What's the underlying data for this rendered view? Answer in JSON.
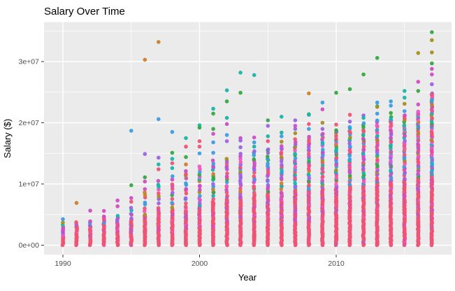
{
  "chart_data": {
    "type": "scatter",
    "title": "Salary Over Time",
    "xlabel": "Year",
    "ylabel": "Salary ($)",
    "x_ticks": [
      {
        "label": "1990",
        "value": 1990
      },
      {
        "label": "2000",
        "value": 2000
      },
      {
        "label": "2010",
        "value": 2010
      }
    ],
    "x_minor_ticks": [
      1995,
      2005,
      2015
    ],
    "y_ticks": [
      {
        "label": "0e+00",
        "value": 0
      },
      {
        "label": "1e+07",
        "value": 10000000
      },
      {
        "label": "2e+07",
        "value": 20000000
      },
      {
        "label": "3e+07",
        "value": 30000000
      }
    ],
    "y_minor_ticks": [
      5000000,
      15000000,
      25000000,
      35000000
    ],
    "xlim": [
      1988.6,
      2018.4
    ],
    "ylim": [
      -1750000,
      36500000
    ],
    "grid": true,
    "legend": "none",
    "panel_color": "#EBEBEB",
    "gridline_color": "#FFFFFF",
    "palette": {
      "rose": "#ef5375",
      "magenta": "#cf4dc4",
      "pink": "#ef59c1",
      "purple": "#9d62e4",
      "blue": "#3c9de2",
      "teal": "#18b5ab",
      "green": "#35a845",
      "olive": "#a58f1e",
      "orange": "#cc802a"
    },
    "solid_color_weights": {
      "rose": 0.78,
      "magenta": 0.12,
      "purple": 0.06,
      "pink": 0.04
    },
    "mixed_color_weights": {
      "rose": 0.24,
      "magenta": 0.19,
      "purple": 0.15,
      "blue": 0.13,
      "teal": 0.1,
      "pink": 0.07,
      "green": 0.06,
      "olive": 0.04,
      "orange": 0.02
    },
    "years": [
      {
        "year": 1990,
        "solid_max": 2400000,
        "mixed_max": 3600000,
        "mixed_n": 3,
        "outliers": [
          [
            4250000,
            "blue"
          ],
          [
            3700000,
            "olive"
          ]
        ]
      },
      {
        "year": 1991,
        "solid_max": 3000000,
        "mixed_max": 3900000,
        "mixed_n": 3,
        "outliers": [
          [
            6900000,
            "orange"
          ]
        ]
      },
      {
        "year": 1992,
        "solid_max": 3200000,
        "mixed_max": 4100000,
        "mixed_n": 3,
        "outliers": [
          [
            5650000,
            "magenta"
          ]
        ]
      },
      {
        "year": 1993,
        "solid_max": 3600000,
        "mixed_max": 4600000,
        "mixed_n": 4,
        "outliers": [
          [
            5600000,
            "magenta"
          ],
          [
            4700000,
            "magenta"
          ]
        ]
      },
      {
        "year": 1994,
        "solid_max": 3800000,
        "mixed_max": 5000000,
        "mixed_n": 4,
        "outliers": [
          [
            7300000,
            "magenta"
          ],
          [
            6350000,
            "magenta"
          ]
        ]
      },
      {
        "year": 1995,
        "solid_max": 4200000,
        "mixed_max": 6200000,
        "mixed_n": 5,
        "outliers": [
          [
            18700000,
            "blue"
          ],
          [
            9800000,
            "green"
          ],
          [
            7700000,
            "magenta"
          ],
          [
            7100000,
            "rose"
          ]
        ]
      },
      {
        "year": 1996,
        "solid_max": 4800000,
        "mixed_max": 9500000,
        "mixed_n": 9,
        "outliers": [
          [
            30300000,
            "orange"
          ],
          [
            14900000,
            "purple"
          ],
          [
            11100000,
            "green"
          ],
          [
            10400000,
            "magenta"
          ]
        ]
      },
      {
        "year": 1997,
        "solid_max": 5500000,
        "mixed_max": 10800000,
        "mixed_n": 10,
        "outliers": [
          [
            33200000,
            "orange"
          ],
          [
            20600000,
            "blue"
          ],
          [
            14300000,
            "purple"
          ],
          [
            13200000,
            "teal"
          ],
          [
            12400000,
            "rose"
          ]
        ]
      },
      {
        "year": 1998,
        "solid_max": 5800000,
        "mixed_max": 11300000,
        "mixed_n": 11,
        "outliers": [
          [
            18500000,
            "blue"
          ],
          [
            15100000,
            "green"
          ],
          [
            14100000,
            "teal"
          ],
          [
            13400000,
            "rose"
          ],
          [
            12600000,
            "teal"
          ]
        ]
      },
      {
        "year": 1999,
        "solid_max": 5600000,
        "mixed_max": 12500000,
        "mixed_n": 14,
        "outliers": [
          [
            17500000,
            "teal"
          ],
          [
            16100000,
            "rose"
          ],
          [
            14400000,
            "green"
          ],
          [
            13200000,
            "orange"
          ]
        ]
      },
      {
        "year": 2000,
        "solid_max": 6300000,
        "mixed_max": 13000000,
        "mixed_n": 16,
        "outliers": [
          [
            19600000,
            "teal"
          ],
          [
            19200000,
            "green"
          ],
          [
            17000000,
            "rose"
          ],
          [
            16100000,
            "rose"
          ],
          [
            15000000,
            "blue"
          ]
        ]
      },
      {
        "year": 2001,
        "solid_max": 7000000,
        "mixed_max": 14000000,
        "mixed_n": 17,
        "outliers": [
          [
            22300000,
            "teal"
          ],
          [
            21500000,
            "green"
          ],
          [
            19000000,
            "green"
          ],
          [
            18200000,
            "magenta"
          ],
          [
            16800000,
            "blue"
          ],
          [
            15100000,
            "blue"
          ]
        ]
      },
      {
        "year": 2002,
        "solid_max": 7500000,
        "mixed_max": 14500000,
        "mixed_n": 17,
        "outliers": [
          [
            25300000,
            "teal"
          ],
          [
            23500000,
            "green"
          ],
          [
            20800000,
            "teal"
          ],
          [
            19800000,
            "magenta"
          ],
          [
            18000000,
            "blue"
          ],
          [
            17000000,
            "purple"
          ]
        ]
      },
      {
        "year": 2003,
        "solid_max": 7800000,
        "mixed_max": 15000000,
        "mixed_n": 18,
        "outliers": [
          [
            28200000,
            "teal"
          ],
          [
            24900000,
            "green"
          ],
          [
            17500000,
            "magenta"
          ],
          [
            17100000,
            "purple"
          ],
          [
            16000000,
            "purple"
          ]
        ]
      },
      {
        "year": 2004,
        "solid_max": 8000000,
        "mixed_max": 15500000,
        "mixed_n": 19,
        "outliers": [
          [
            27800000,
            "teal"
          ],
          [
            17600000,
            "magenta"
          ],
          [
            16800000,
            "blue"
          ],
          [
            16100000,
            "teal"
          ]
        ]
      },
      {
        "year": 2005,
        "solid_max": 8200000,
        "mixed_max": 16000000,
        "mixed_n": 20,
        "outliers": [
          [
            20400000,
            "green"
          ],
          [
            19500000,
            "purple"
          ],
          [
            17800000,
            "teal"
          ],
          [
            17000000,
            "rose"
          ]
        ]
      },
      {
        "year": 2006,
        "solid_max": 8500000,
        "mixed_max": 16500000,
        "mixed_n": 21,
        "outliers": [
          [
            21000000,
            "teal"
          ],
          [
            18400000,
            "teal"
          ],
          [
            17800000,
            "blue"
          ],
          [
            16900000,
            "olive"
          ]
        ]
      },
      {
        "year": 2007,
        "solid_max": 8800000,
        "mixed_max": 17500000,
        "mixed_n": 23,
        "outliers": [
          [
            20400000,
            "purple"
          ],
          [
            19500000,
            "magenta"
          ],
          [
            19000000,
            "purple"
          ],
          [
            18300000,
            "olive"
          ]
        ]
      },
      {
        "year": 2008,
        "solid_max": 9000000,
        "mixed_max": 18000000,
        "mixed_n": 25,
        "outliers": [
          [
            24800000,
            "orange"
          ],
          [
            21400000,
            "green"
          ],
          [
            21300000,
            "teal"
          ],
          [
            19800000,
            "rose"
          ],
          [
            19000000,
            "blue"
          ]
        ]
      },
      {
        "year": 2009,
        "solid_max": 9200000,
        "mixed_max": 18500000,
        "mixed_n": 25,
        "outliers": [
          [
            23300000,
            "blue"
          ],
          [
            22200000,
            "magenta"
          ],
          [
            20000000,
            "olive"
          ],
          [
            19000000,
            "purple"
          ]
        ]
      },
      {
        "year": 2010,
        "solid_max": 9500000,
        "mixed_max": 19000000,
        "mixed_n": 28,
        "outliers": [
          [
            24900000,
            "green"
          ],
          [
            19700000,
            "rose"
          ]
        ]
      },
      {
        "year": 2011,
        "solid_max": 9800000,
        "mixed_max": 19500000,
        "mixed_n": 28,
        "outliers": [
          [
            25500000,
            "green"
          ],
          [
            21300000,
            "rose"
          ],
          [
            20200000,
            "purple"
          ]
        ]
      },
      {
        "year": 2012,
        "solid_max": 10000000,
        "mixed_max": 20000000,
        "mixed_n": 30,
        "outliers": [
          [
            27900000,
            "green"
          ],
          [
            21200000,
            "purple"
          ],
          [
            20800000,
            "teal"
          ]
        ]
      },
      {
        "year": 2013,
        "solid_max": 10200000,
        "mixed_max": 20500000,
        "mixed_n": 31,
        "outliers": [
          [
            30600000,
            "green"
          ],
          [
            23300000,
            "blue"
          ],
          [
            22700000,
            "teal"
          ],
          [
            22600000,
            "olive"
          ],
          [
            21500000,
            "blue"
          ]
        ]
      },
      {
        "year": 2014,
        "solid_max": 10500000,
        "mixed_max": 21000000,
        "mixed_n": 33,
        "outliers": [
          [
            23500000,
            "blue"
          ],
          [
            22800000,
            "blue"
          ],
          [
            21600000,
            "green"
          ],
          [
            20600000,
            "teal"
          ]
        ]
      },
      {
        "year": 2015,
        "solid_max": 10800000,
        "mixed_max": 21500000,
        "mixed_n": 33,
        "outliers": [
          [
            25200000,
            "teal"
          ],
          [
            24100000,
            "teal"
          ],
          [
            23100000,
            "olive"
          ],
          [
            21900000,
            "blue"
          ]
        ]
      },
      {
        "year": 2016,
        "solid_max": 11000000,
        "mixed_max": 22000000,
        "mixed_n": 38,
        "outliers": [
          [
            31400000,
            "olive"
          ],
          [
            26700000,
            "magenta"
          ],
          [
            25200000,
            "green"
          ],
          [
            23000000,
            "magenta"
          ]
        ]
      },
      {
        "year": 2017,
        "solid_max": 11500000,
        "mixed_max": 25000000,
        "mixed_n": 50,
        "outliers": [
          [
            34800000,
            "green"
          ],
          [
            33500000,
            "olive"
          ],
          [
            31500000,
            "olive"
          ],
          [
            29700000,
            "green"
          ],
          [
            28800000,
            "magenta"
          ],
          [
            27900000,
            "magenta"
          ],
          [
            26300000,
            "purple"
          ],
          [
            24600000,
            "rose"
          ],
          [
            23700000,
            "blue"
          ]
        ]
      }
    ]
  }
}
